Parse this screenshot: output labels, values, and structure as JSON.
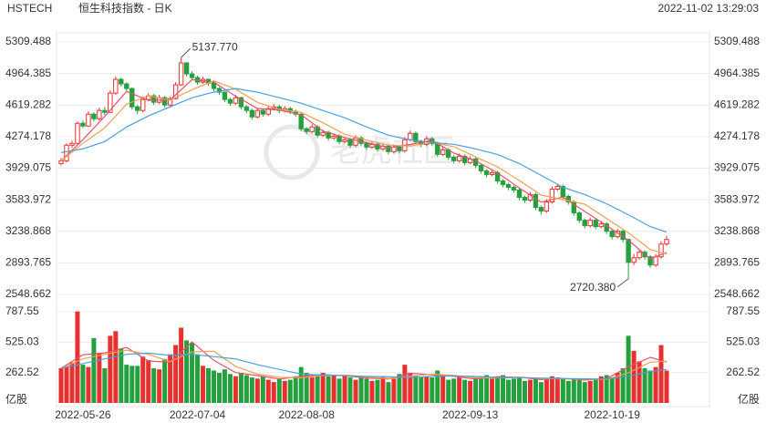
{
  "chart_data": {
    "type": "candlestick",
    "symbol": "HSTECH",
    "title": "恒生科技指数 - 日K",
    "timestamp": "2022-11-02 13:29:03",
    "watermark": "老虎社区",
    "categories": [
      null,
      null,
      null,
      null,
      "2022-05-26",
      null,
      null,
      null,
      null,
      null,
      null,
      null,
      null,
      null,
      null,
      null,
      null,
      null,
      null,
      null,
      null,
      null,
      null,
      null,
      null,
      "2022-07-04",
      null,
      null,
      null,
      null,
      null,
      null,
      null,
      null,
      null,
      null,
      null,
      null,
      null,
      null,
      null,
      null,
      null,
      null,
      null,
      "2022-08-08",
      null,
      null,
      null,
      null,
      null,
      null,
      null,
      null,
      null,
      null,
      null,
      null,
      null,
      null,
      null,
      null,
      null,
      null,
      null,
      null,
      null,
      null,
      null,
      null,
      null,
      null,
      null,
      null,
      null,
      "2022-09-13",
      null,
      null,
      null,
      null,
      null,
      null,
      null,
      null,
      null,
      null,
      null,
      null,
      null,
      null,
      null,
      null,
      null,
      null,
      null,
      null,
      null,
      null,
      null,
      null,
      null,
      "2022-10-19",
      null,
      null,
      null,
      null,
      null,
      null,
      null,
      null,
      null,
      null
    ],
    "candles": [
      [
        3980,
        4040,
        3960,
        4010
      ],
      [
        4010,
        4200,
        3990,
        4180
      ],
      [
        4180,
        4230,
        4150,
        4200
      ],
      [
        4200,
        4440,
        4190,
        4420
      ],
      [
        4420,
        4450,
        4370,
        4390
      ],
      [
        4390,
        4550,
        4380,
        4520
      ],
      [
        4520,
        4540,
        4440,
        4470
      ],
      [
        4470,
        4590,
        4450,
        4560
      ],
      [
        4560,
        4600,
        4510,
        4540
      ],
      [
        4540,
        4780,
        4530,
        4750
      ],
      [
        4750,
        4930,
        4730,
        4900
      ],
      [
        4900,
        4920,
        4820,
        4850
      ],
      [
        4850,
        4870,
        4770,
        4800
      ],
      [
        4800,
        4810,
        4570,
        4600
      ],
      [
        4600,
        4620,
        4520,
        4560
      ],
      [
        4560,
        4710,
        4540,
        4680
      ],
      [
        4680,
        4750,
        4660,
        4720
      ],
      [
        4720,
        4740,
        4620,
        4650
      ],
      [
        4650,
        4730,
        4630,
        4700
      ],
      [
        4700,
        4720,
        4590,
        4620
      ],
      [
        4620,
        4710,
        4600,
        4690
      ],
      [
        4690,
        4870,
        4680,
        4840
      ],
      [
        4840,
        5137.77,
        4830,
        5080
      ],
      [
        5080,
        5090,
        4930,
        4960
      ],
      [
        4960,
        4990,
        4890,
        4920
      ],
      [
        4920,
        4940,
        4840,
        4870
      ],
      [
        4870,
        4930,
        4850,
        4900
      ],
      [
        4900,
        4910,
        4830,
        4860
      ],
      [
        4860,
        4880,
        4770,
        4800
      ],
      [
        4800,
        4820,
        4730,
        4760
      ],
      [
        4760,
        4770,
        4650,
        4680
      ],
      [
        4680,
        4700,
        4610,
        4640
      ],
      [
        4640,
        4730,
        4620,
        4700
      ],
      [
        4700,
        4710,
        4570,
        4600
      ],
      [
        4600,
        4620,
        4530,
        4560
      ],
      [
        4560,
        4580,
        4460,
        4490
      ],
      [
        4490,
        4590,
        4470,
        4560
      ],
      [
        4560,
        4580,
        4490,
        4520
      ],
      [
        4520,
        4610,
        4500,
        4580
      ],
      [
        4580,
        4630,
        4560,
        4600
      ],
      [
        4600,
        4620,
        4530,
        4560
      ],
      [
        4560,
        4610,
        4540,
        4580
      ],
      [
        4580,
        4600,
        4520,
        4550
      ],
      [
        4550,
        4570,
        4490,
        4520
      ],
      [
        4520,
        4530,
        4330,
        4360
      ],
      [
        4360,
        4380,
        4300,
        4330
      ],
      [
        4330,
        4410,
        4310,
        4380
      ],
      [
        4380,
        4400,
        4260,
        4290
      ],
      [
        4290,
        4350,
        4270,
        4320
      ],
      [
        4320,
        4340,
        4230,
        4260
      ],
      [
        4260,
        4310,
        4240,
        4280
      ],
      [
        4280,
        4300,
        4190,
        4220
      ],
      [
        4220,
        4270,
        4200,
        4240
      ],
      [
        4240,
        4260,
        4150,
        4180
      ],
      [
        4180,
        4290,
        4160,
        4260
      ],
      [
        4260,
        4280,
        4170,
        4200
      ],
      [
        4200,
        4220,
        4130,
        4160
      ],
      [
        4160,
        4220,
        4140,
        4190
      ],
      [
        4190,
        4210,
        4110,
        4140
      ],
      [
        4140,
        4200,
        4120,
        4170
      ],
      [
        4170,
        4190,
        4080,
        4110
      ],
      [
        4110,
        4190,
        4090,
        4160
      ],
      [
        4160,
        4180,
        4090,
        4120
      ],
      [
        4120,
        4270,
        4100,
        4240
      ],
      [
        4240,
        4340,
        4220,
        4310
      ],
      [
        4310,
        4330,
        4190,
        4220
      ],
      [
        4220,
        4240,
        4160,
        4190
      ],
      [
        4190,
        4280,
        4170,
        4250
      ],
      [
        4250,
        4270,
        4170,
        4200
      ],
      [
        4200,
        4220,
        4050,
        4080
      ],
      [
        4080,
        4160,
        4060,
        4130
      ],
      [
        4130,
        4150,
        4020,
        4050
      ],
      [
        4050,
        4070,
        3980,
        4010
      ],
      [
        4010,
        4090,
        3990,
        4060
      ],
      [
        4060,
        4080,
        3960,
        3990
      ],
      [
        3990,
        4060,
        3970,
        4030
      ],
      [
        4030,
        4050,
        3930,
        3960
      ],
      [
        3960,
        3980,
        3870,
        3900
      ],
      [
        3900,
        3920,
        3830,
        3860
      ],
      [
        3860,
        3910,
        3840,
        3880
      ],
      [
        3880,
        3900,
        3760,
        3790
      ],
      [
        3790,
        3810,
        3720,
        3750
      ],
      [
        3750,
        3770,
        3690,
        3720
      ],
      [
        3720,
        3740,
        3660,
        3690
      ],
      [
        3690,
        3710,
        3580,
        3610
      ],
      [
        3610,
        3630,
        3550,
        3580
      ],
      [
        3580,
        3670,
        3560,
        3640
      ],
      [
        3640,
        3660,
        3470,
        3500
      ],
      [
        3500,
        3520,
        3420,
        3460
      ],
      [
        3460,
        3590,
        3440,
        3560
      ],
      [
        3560,
        3730,
        3540,
        3700
      ],
      [
        3700,
        3760,
        3680,
        3730
      ],
      [
        3730,
        3750,
        3590,
        3620
      ],
      [
        3620,
        3640,
        3530,
        3560
      ],
      [
        3560,
        3580,
        3410,
        3440
      ],
      [
        3440,
        3460,
        3330,
        3360
      ],
      [
        3360,
        3380,
        3270,
        3300
      ],
      [
        3300,
        3390,
        3280,
        3360
      ],
      [
        3360,
        3380,
        3260,
        3290
      ],
      [
        3290,
        3350,
        3270,
        3320
      ],
      [
        3320,
        3340,
        3210,
        3240
      ],
      [
        3240,
        3260,
        3150,
        3180
      ],
      [
        3180,
        3270,
        3160,
        3240
      ],
      [
        3240,
        3260,
        3120,
        3150
      ],
      [
        3150,
        3160,
        2720.38,
        2900
      ],
      [
        2900,
        2990,
        2870,
        2950
      ],
      [
        2950,
        3040,
        2930,
        3010
      ],
      [
        3010,
        3030,
        2930,
        2960
      ],
      [
        2960,
        2980,
        2840,
        2870
      ],
      [
        2870,
        2990,
        2850,
        2960
      ],
      [
        2960,
        3130,
        2940,
        3100
      ],
      [
        3100,
        3190,
        3080,
        3150
      ]
    ],
    "up_color": "#e8312f",
    "down_color": "#25a03e",
    "ylim": [
      2548.662,
      5309.488
    ],
    "yticks": [
      2548.662,
      2893.765,
      3238.868,
      3583.972,
      3929.075,
      4274.178,
      4619.282,
      4964.385,
      5309.488
    ],
    "volume": [
      300,
      310,
      350,
      790,
      330,
      310,
      560,
      430,
      300,
      580,
      620,
      470,
      330,
      320,
      320,
      400,
      370,
      300,
      290,
      380,
      420,
      500,
      650,
      540,
      520,
      420,
      320,
      300,
      280,
      260,
      290,
      250,
      230,
      260,
      240,
      220,
      210,
      230,
      200,
      180,
      210,
      190,
      200,
      230,
      310,
      260,
      220,
      240,
      260,
      230,
      240,
      210,
      230,
      220,
      200,
      220,
      210,
      190,
      200,
      230,
      180,
      210,
      250,
      330,
      260,
      240,
      220,
      230,
      220,
      280,
      240,
      200,
      210,
      220,
      200,
      190,
      220,
      230,
      240,
      210,
      230,
      240,
      200,
      210,
      220,
      190,
      200,
      210,
      180,
      200,
      230,
      220,
      210,
      190,
      210,
      200,
      180,
      190,
      210,
      230,
      240,
      220,
      260,
      300,
      580,
      450,
      360,
      300,
      280,
      310,
      500,
      280
    ],
    "volume_unit": "亿股",
    "y2lim": [
      0,
      787.55
    ],
    "y2ticks": [
      262.52,
      525.03,
      787.55
    ],
    "price_ma": {
      "x": [
        0,
        4,
        8,
        12,
        16,
        20,
        24,
        28,
        32,
        36,
        40,
        44,
        48,
        52,
        56,
        60,
        64,
        68,
        72,
        76,
        80,
        84,
        88,
        92,
        96,
        100,
        104,
        108,
        111
      ],
      "series": [
        {
          "color": "#e8506a",
          "values": [
            4010,
            4240,
            4496,
            4768,
            4672,
            4676,
            4898,
            4870,
            4716,
            4582,
            4564,
            4514,
            4336,
            4264,
            4208,
            4154,
            4188,
            4234,
            4094,
            4010,
            3878,
            3712,
            3558,
            3614,
            3456,
            3302,
            3142,
            2938,
            3008
          ]
        },
        {
          "color": "#f0a050",
          "values": [
            4010,
            4200,
            4370,
            4630,
            4720,
            4674,
            4787,
            4884,
            4793,
            4649,
            4573,
            4539,
            4425,
            4300,
            4236,
            4181,
            4171,
            4211,
            4164,
            4052,
            3944,
            3795,
            3635,
            3586,
            3535,
            3379,
            3222,
            3040,
            2990
          ]
        },
        {
          "color": "#4a9fe0",
          "values": [
            4100,
            4140,
            4220,
            4380,
            4500,
            4600,
            4700,
            4760,
            4800,
            4760,
            4700,
            4640,
            4560,
            4480,
            4380,
            4290,
            4240,
            4210,
            4190,
            4140,
            4080,
            3980,
            3850,
            3720,
            3640,
            3540,
            3420,
            3290,
            3230
          ]
        }
      ]
    },
    "volume_ma": {
      "x": [
        0,
        4,
        8,
        12,
        16,
        20,
        24,
        28,
        32,
        36,
        40,
        44,
        48,
        52,
        56,
        60,
        64,
        68,
        72,
        76,
        80,
        84,
        88,
        92,
        96,
        100,
        104,
        108,
        111
      ],
      "series": [
        {
          "color": "#e8506a",
          "values": [
            300,
            416,
            432,
            480,
            362,
            352,
            526,
            368,
            262,
            236,
            206,
            228,
            246,
            234,
            216,
            206,
            256,
            244,
            230,
            206,
            226,
            222,
            202,
            212,
            198,
            210,
            310,
            394,
            354
          ]
        },
        {
          "color": "#f0a050",
          "values": [
            300,
            380,
            420,
            455,
            420,
            357,
            440,
            447,
            315,
            249,
            221,
            217,
            237,
            240,
            225,
            211,
            231,
            250,
            237,
            218,
            216,
            224,
            212,
            207,
            205,
            204,
            260,
            352,
            360
          ]
        },
        {
          "color": "#4a9fe0",
          "values": [
            300,
            340,
            380,
            420,
            430,
            410,
            420,
            400,
            380,
            330,
            290,
            250,
            240,
            235,
            230,
            225,
            220,
            230,
            235,
            228,
            220,
            218,
            215,
            210,
            208,
            206,
            230,
            270,
            290
          ]
        }
      ]
    },
    "annotations": [
      {
        "label": "5137.770"
      },
      {
        "label": "2720.380"
      }
    ]
  }
}
